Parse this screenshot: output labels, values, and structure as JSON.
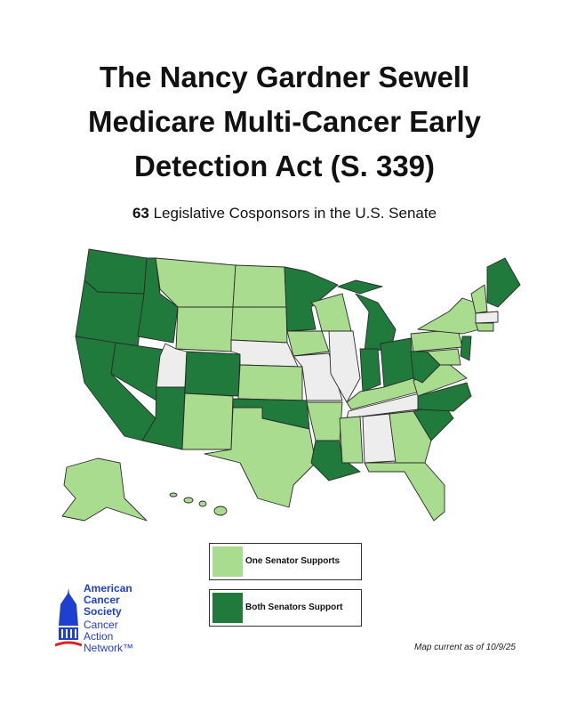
{
  "header": {
    "title_lines": [
      "The Nancy Gardner Sewell",
      "Medicare Multi-Cancer Early",
      "Detection Act (S. 339)"
    ],
    "subtitle": {
      "count": 63,
      "text": "Legislative Cosponsors in the U.S. Senate"
    }
  },
  "legend": [
    "One Senator Supports",
    "Both Senators Support"
  ],
  "logo": {
    "org": [
      "American",
      "Cancer",
      "Society"
    ],
    "sub": [
      "Cancer",
      "Action",
      "Network™"
    ]
  },
  "footnote": "Map current as of 10/9/25"
}
